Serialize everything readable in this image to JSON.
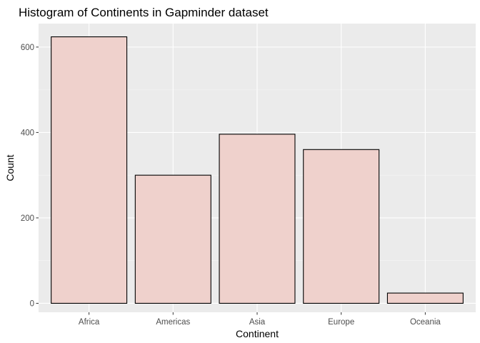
{
  "chart_data": {
    "type": "bar",
    "title": "Histogram of Continents in Gapminder dataset",
    "xlabel": "Continent",
    "ylabel": "Count",
    "categories": [
      "Africa",
      "Americas",
      "Asia",
      "Europe",
      "Oceania"
    ],
    "values": [
      624,
      300,
      396,
      360,
      24
    ],
    "ylim": [
      -21,
      655
    ],
    "yticks": [
      0,
      200,
      400,
      600
    ],
    "grid": true,
    "colors": {
      "panel_background": "#ebebeb",
      "grid_major": "#ffffff",
      "grid_minor": "#f5f5f5",
      "bar_fill": "#efd1cc",
      "bar_stroke": "#000000",
      "tick_text": "#4d4d4d",
      "tick_mark": "#333333"
    }
  }
}
